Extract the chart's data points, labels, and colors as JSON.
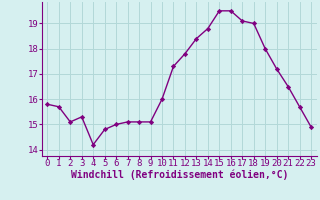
{
  "x": [
    0,
    1,
    2,
    3,
    4,
    5,
    6,
    7,
    8,
    9,
    10,
    11,
    12,
    13,
    14,
    15,
    16,
    17,
    18,
    19,
    20,
    21,
    22,
    23
  ],
  "y": [
    15.8,
    15.7,
    15.1,
    15.3,
    14.2,
    14.8,
    15.0,
    15.1,
    15.1,
    15.1,
    16.0,
    17.3,
    17.8,
    18.4,
    18.8,
    19.5,
    19.5,
    19.1,
    19.0,
    18.0,
    17.2,
    16.5,
    15.7,
    14.9
  ],
  "line_color": "#800080",
  "marker": "D",
  "marker_size": 2.2,
  "bg_color": "#d6f0f0",
  "grid_color": "#b2d8d8",
  "xlabel": "Windchill (Refroidissement éolien,°C)",
  "xlim": [
    -0.5,
    23.5
  ],
  "ylim": [
    13.75,
    19.85
  ],
  "yticks": [
    14,
    15,
    16,
    17,
    18,
    19
  ],
  "xticks": [
    0,
    1,
    2,
    3,
    4,
    5,
    6,
    7,
    8,
    9,
    10,
    11,
    12,
    13,
    14,
    15,
    16,
    17,
    18,
    19,
    20,
    21,
    22,
    23
  ],
  "axis_color": "#800080",
  "font_size": 6.5,
  "xlabel_font_size": 7.0,
  "linewidth": 1.0
}
